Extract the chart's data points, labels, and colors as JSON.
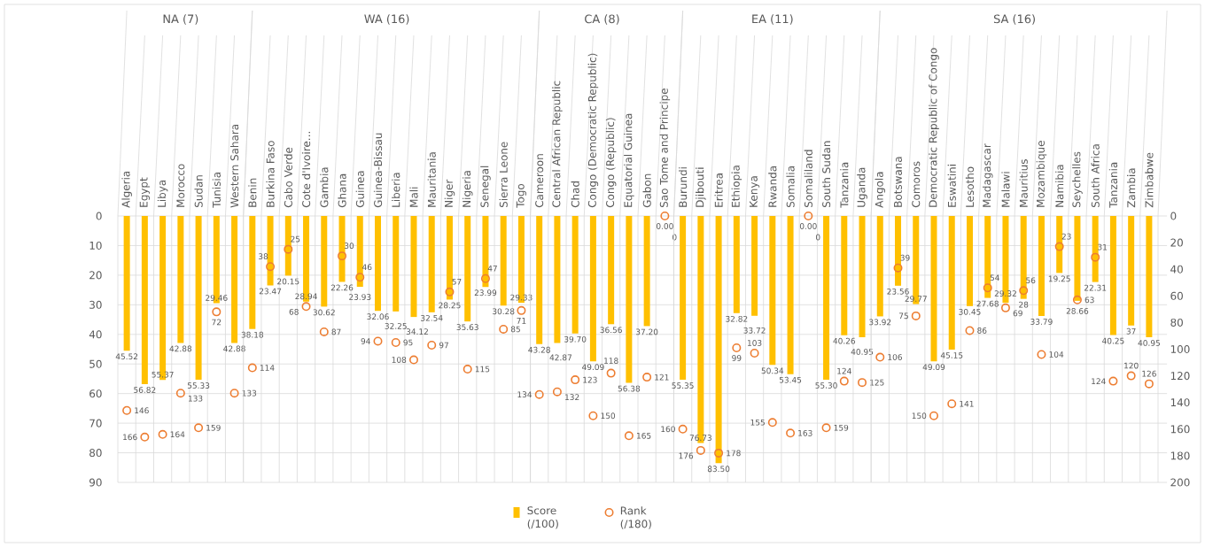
{
  "chart_data": [
    {
      "type": "bar",
      "title": "NA (7)",
      "categories": [
        "Algeria",
        "Egypt",
        "Libya",
        "Morocco",
        "Sudan",
        "Tunisia",
        "Western Sahara"
      ],
      "series": [
        {
          "color": "#ffc000",
          "values": [
            45.52,
            56.82,
            55.37,
            42.88,
            55.33,
            29.46,
            42.88
          ],
          "value_labels": [
            "45.52",
            "56.82",
            "55.37",
            "42.88",
            "55.33",
            "29.46",
            "42.88"
          ]
        },
        {
          "type": "scatter",
          "axis": "y2",
          "marker": "circle",
          "color": "#ed7d31",
          "values": [
            146,
            166,
            164,
            133,
            159,
            72,
            133
          ],
          "value_labels": [
            "146",
            "166",
            "164",
            "133",
            "159",
            "72",
            "133"
          ]
        }
      ],
      "ylim": [
        90,
        0
      ],
      "yticks": [
        0,
        10,
        20,
        30,
        40,
        50,
        60,
        70,
        80,
        90
      ],
      "y2lim": [
        200,
        0
      ],
      "grid": true
    },
    {
      "type": "bar",
      "title": "WA (16)",
      "categories": [
        "Benin",
        "Burkina Faso",
        "Cabo Verde",
        "Cote d'Ivoire...",
        "Gambia",
        "Ghana",
        "Guinea",
        "Guinea-Bissau",
        "Liberia",
        "Mali",
        "Mauritania",
        "Niger",
        "Nigeria",
        "Senegal",
        "Sierra Leone",
        "Togo"
      ],
      "series": [
        {
          "color": "#ffc000",
          "values": [
            38.18,
            23.47,
            20.15,
            28.94,
            30.62,
            22.26,
            23.93,
            32.06,
            32.25,
            34.12,
            32.54,
            28.25,
            35.63,
            23.99,
            30.28,
            29.33
          ],
          "value_labels": [
            "38.18",
            "23.47",
            "20.15",
            "28.94",
            "30.62",
            "22.26",
            "23.93",
            "32.06",
            "32.25",
            "34.12",
            "32.54",
            "28.25",
            "35.63",
            "23.99",
            "30.28",
            "29.33"
          ]
        },
        {
          "type": "scatter",
          "axis": "y2",
          "marker": "circle",
          "color": "#ed7d31",
          "values": [
            114,
            38,
            25,
            68,
            87,
            30,
            46,
            94,
            95,
            108,
            97,
            57,
            115,
            47,
            85,
            71
          ],
          "value_labels": [
            "114",
            "38",
            "25",
            "68",
            "87",
            "30",
            "46",
            "94",
            "95",
            "108",
            "97",
            "57",
            "115",
            "47",
            "85",
            "71"
          ]
        }
      ],
      "ylim": [
        90,
        0
      ],
      "y2lim": [
        200,
        0
      ],
      "grid": "x"
    },
    {
      "type": "bar",
      "title": "CA (8)",
      "categories": [
        "Cameroon",
        "Central African Republic",
        "Chad",
        "Congo (Democratic Republic)",
        "Congo (Republic)",
        "Equatorial Guinea",
        "Gabon",
        "Sao Tome and Principe"
      ],
      "series": [
        {
          "name": "Score (/100)",
          "color": "#ffc000",
          "values": [
            43.28,
            42.87,
            39.7,
            49.09,
            36.56,
            56.38,
            37.2,
            0
          ],
          "value_labels": [
            "43.28",
            "42.87",
            "39.70",
            "49.09",
            "36.56",
            "56.38",
            "37.20",
            "0.00"
          ]
        },
        {
          "name": "Rank (/180)",
          "type": "scatter",
          "axis": "y2",
          "marker": "circle",
          "color": "#ed7d31",
          "values": [
            134,
            132,
            123,
            150,
            118,
            165,
            121,
            0
          ],
          "value_labels": [
            "134",
            "132",
            "123",
            "150",
            "118",
            "165",
            "121",
            "0"
          ]
        }
      ],
      "ylim": [
        90,
        0
      ],
      "y2lim": [
        200,
        0
      ],
      "grid": "x",
      "legend": "bottom"
    },
    {
      "type": "bar",
      "title": "EA (11)",
      "categories": [
        "Burundi",
        "Djibouti",
        "Eritrea",
        "Ethiopia",
        "Kenya",
        "Rwanda",
        "Somalia",
        "Somaliland",
        "South Sudan",
        "Tanzania",
        "Uganda"
      ],
      "series": [
        {
          "color": "#ffc000",
          "values": [
            55.35,
            76.73,
            83.5,
            32.82,
            33.72,
            50.34,
            53.45,
            0,
            55.3,
            40.26,
            40.95
          ],
          "value_labels": [
            "55.35",
            "76.73",
            "83.50",
            "32.82",
            "33.72",
            "50.34",
            "53.45",
            "0.00",
            "55.30",
            "40.26",
            "40.95"
          ]
        },
        {
          "type": "scatter",
          "axis": "y2",
          "marker": "circle",
          "color": "#ed7d31",
          "values": [
            160,
            176,
            178,
            99,
            103,
            155,
            163,
            0,
            159,
            124,
            125
          ],
          "value_labels": [
            "160",
            "176",
            "178",
            "99",
            "103",
            "155",
            "163",
            "0",
            "159",
            "124",
            "125"
          ]
        }
      ],
      "ylim": [
        90,
        0
      ],
      "y2lim": [
        200,
        0
      ],
      "grid": "x"
    },
    {
      "type": "bar",
      "title": "SA (16)",
      "categories": [
        "Angola",
        "Botswana",
        "Comoros",
        "Democratic Republic of Congo",
        "Eswatini",
        "Lesotho",
        "Madagascar",
        "Malawi",
        "Mauritius",
        "Mozambique",
        "Namibia",
        "Seychelles",
        "South Africa",
        "Tanzania",
        "Zambia",
        "Zimbabwe"
      ],
      "series": [
        {
          "color": "#ffc000",
          "values": [
            33.92,
            23.56,
            29.77,
            49.09,
            45.15,
            30.45,
            27.68,
            29.32,
            28,
            33.79,
            19.25,
            28.66,
            22.31,
            40.25,
            37,
            40.95
          ],
          "value_labels": [
            "33.92",
            "23.56",
            "29.77",
            "49.09",
            "45.15",
            "30.45",
            "27.68",
            "29.32",
            "28",
            "33.79",
            "19.25",
            "28.66",
            "22.31",
            "40.25",
            "37",
            "40.95"
          ]
        },
        {
          "type": "scatter",
          "axis": "y2",
          "marker": "circle",
          "color": "#ed7d31",
          "values": [
            106,
            39,
            75,
            150,
            141,
            86,
            54,
            69,
            56,
            104,
            23,
            63,
            31,
            124,
            120,
            126
          ],
          "value_labels": [
            "106",
            "39",
            "75",
            "150",
            "141",
            "86",
            "54",
            "69",
            "56",
            "104",
            "23",
            "63",
            "31",
            "124",
            "120",
            "126"
          ]
        }
      ],
      "ylim": [
        90,
        0
      ],
      "y2lim": [
        200,
        0
      ],
      "y2ticks": [
        0,
        20,
        40,
        60,
        80,
        100,
        120,
        140,
        160,
        180,
        200
      ],
      "grid": "x"
    }
  ]
}
